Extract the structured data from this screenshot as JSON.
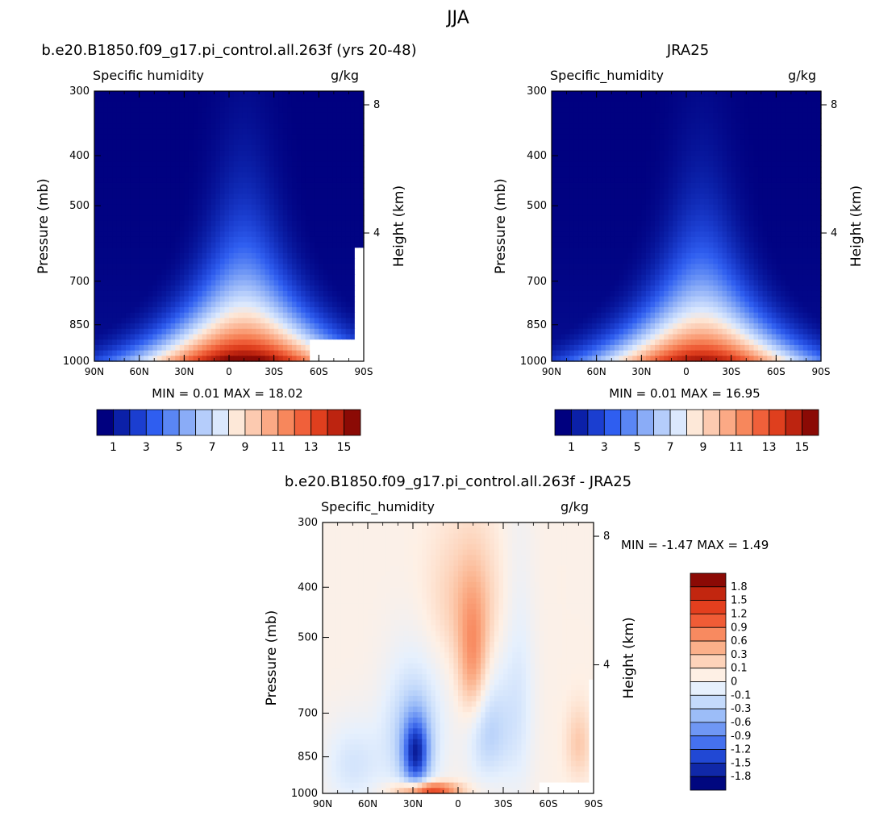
{
  "figure": {
    "title": "JJA"
  },
  "chart_data": [
    {
      "type": "heatmap",
      "title": "b.e20.B1850.f09_g17.pi_control.all.263f (yrs 20-48)",
      "variable_label": "Specific humidity",
      "units_label": "g/kg",
      "ylabel": "Pressure (mb)",
      "y2label": "Height (km)",
      "xlabel": "",
      "x_ticks": [
        "90N",
        "60N",
        "30N",
        "0",
        "30S",
        "60S",
        "90S"
      ],
      "x_tick_values": [
        90,
        60,
        30,
        0,
        -30,
        -60,
        -90
      ],
      "y_ticks": [
        "300",
        "400",
        "500",
        "700",
        "850",
        "1000"
      ],
      "y_tick_values": [
        300,
        400,
        500,
        700,
        850,
        1000
      ],
      "y2_ticks": [
        "8",
        "4"
      ],
      "y2_tick_values": [
        8,
        4
      ],
      "xlim": [
        90,
        -90
      ],
      "ylim": [
        1000,
        300
      ],
      "y_scale": "log",
      "stats": {
        "min_label": "MIN =",
        "min": "0.01",
        "max_label": "MAX =",
        "max": "18.02"
      },
      "peak": {
        "lat": -10,
        "pressure": 1000,
        "value": 18.02
      },
      "colorbar": {
        "orientation": "horizontal",
        "labels": [
          "1",
          "3",
          "5",
          "7",
          "9",
          "11",
          "13",
          "15"
        ],
        "colors": [
          "#00007f",
          "#0b20a8",
          "#1b3ed0",
          "#2f5ef0",
          "#5a86f4",
          "#8aacf7",
          "#b5cdfb",
          "#dbe8fd",
          "#fde8d8",
          "#fccab0",
          "#fba985",
          "#f7875c",
          "#f0603a",
          "#df3f1e",
          "#bd2410",
          "#8b0a05"
        ]
      }
    },
    {
      "type": "heatmap",
      "title": "JRA25",
      "variable_label": "Specific_humidity",
      "units_label": "g/kg",
      "ylabel": "Pressure (mb)",
      "y2label": "Height (km)",
      "xlabel": "",
      "x_ticks": [
        "90N",
        "60N",
        "30N",
        "0",
        "30S",
        "60S",
        "90S"
      ],
      "x_tick_values": [
        90,
        60,
        30,
        0,
        -30,
        -60,
        -90
      ],
      "y_ticks": [
        "300",
        "400",
        "500",
        "700",
        "850",
        "1000"
      ],
      "y_tick_values": [
        300,
        400,
        500,
        700,
        850,
        1000
      ],
      "y2_ticks": [
        "8",
        "4"
      ],
      "y2_tick_values": [
        8,
        4
      ],
      "xlim": [
        90,
        -90
      ],
      "ylim": [
        1000,
        300
      ],
      "y_scale": "log",
      "stats": {
        "min_label": "MIN =",
        "min": "0.01",
        "max_label": "MAX =",
        "max": "16.95"
      },
      "peak": {
        "lat": -10,
        "pressure": 1000,
        "value": 16.95
      },
      "colorbar": {
        "orientation": "horizontal",
        "labels": [
          "1",
          "3",
          "5",
          "7",
          "9",
          "11",
          "13",
          "15"
        ],
        "colors": [
          "#00007f",
          "#0b20a8",
          "#1b3ed0",
          "#2f5ef0",
          "#5a86f4",
          "#8aacf7",
          "#b5cdfb",
          "#dbe8fd",
          "#fde8d8",
          "#fccab0",
          "#fba985",
          "#f7875c",
          "#f0603a",
          "#df3f1e",
          "#bd2410",
          "#8b0a05"
        ]
      }
    },
    {
      "type": "heatmap",
      "title": "b.e20.B1850.f09_g17.pi_control.all.263f - JRA25",
      "variable_label": "Specific_humidity",
      "units_label": "g/kg",
      "ylabel": "Pressure (mb)",
      "y2label": "Height (km)",
      "xlabel": "",
      "x_ticks": [
        "90N",
        "60N",
        "30N",
        "0",
        "30S",
        "60S",
        "90S"
      ],
      "x_tick_values": [
        90,
        60,
        30,
        0,
        -30,
        -60,
        -90
      ],
      "y_ticks": [
        "300",
        "400",
        "500",
        "700",
        "850",
        "1000"
      ],
      "y_tick_values": [
        300,
        400,
        500,
        700,
        850,
        1000
      ],
      "y2_ticks": [
        "8",
        "4"
      ],
      "y2_tick_values": [
        8,
        4
      ],
      "xlim": [
        90,
        -90
      ],
      "ylim": [
        1000,
        300
      ],
      "y_scale": "log",
      "stats": {
        "min_label": "MIN =",
        "min": "-1.47",
        "max_label": "MAX =",
        "max": "1.49"
      },
      "colorbar": {
        "orientation": "vertical",
        "labels": [
          "1.8",
          "1.5",
          "1.2",
          "0.9",
          "0.6",
          "0.3",
          "0.1",
          "0",
          "-0.1",
          "-0.3",
          "-0.6",
          "-0.9",
          "-1.2",
          "-1.5",
          "-1.8"
        ],
        "colors": [
          "#8b0a05",
          "#c2260f",
          "#e33f1e",
          "#f05c36",
          "#f88a60",
          "#fbb08a",
          "#fdd3ba",
          "#fef0e5",
          "#e6f0fd",
          "#c4dafb",
          "#9cbdf8",
          "#6f97f4",
          "#4571ef",
          "#2148d4",
          "#1028a8",
          "#00077f"
        ]
      }
    }
  ]
}
